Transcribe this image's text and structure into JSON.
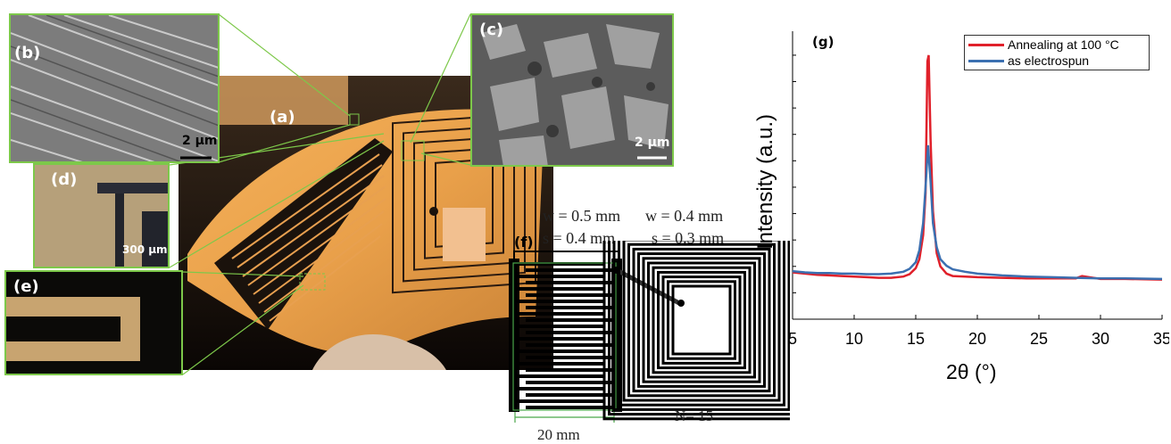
{
  "figure": {
    "photo": {
      "label": "(a)"
    },
    "insets": [
      {
        "id": "b",
        "label": "(b)",
        "scale_text": "2 μm"
      },
      {
        "id": "c",
        "label": "(c)",
        "scale_text": "2 μm"
      },
      {
        "id": "d",
        "label": "(d)",
        "scale_text": "300 μm"
      },
      {
        "id": "e",
        "label": "(e)"
      }
    ],
    "schematic": {
      "label": "(f)",
      "left_w": "w = 0.5 mm",
      "left_s": "s = 0.4 mm",
      "right_w": "w = 0.4 mm",
      "right_s": "s = 0.3 mm",
      "width_label": "20 mm",
      "turns_label": "N= 15"
    }
  },
  "chart_data": {
    "type": "line",
    "panel_label": "(g)",
    "xlabel": "2θ (°)",
    "ylabel": "Intensity (a.u.)",
    "xlim": [
      5,
      35
    ],
    "xticks": [
      "5",
      "10",
      "15",
      "20",
      "25",
      "30",
      "35"
    ],
    "y_ticklabels_shown": false,
    "legend_position": "top-right",
    "series": [
      {
        "name": "Annealing at 100 °C",
        "color": "#e0202a",
        "x": [
          5,
          6,
          7,
          8,
          9,
          10,
          11,
          12,
          13,
          14,
          14.5,
          15,
          15.3,
          15.6,
          15.8,
          15.95,
          16.05,
          16.2,
          16.4,
          16.7,
          17,
          17.5,
          18,
          19,
          20,
          22,
          24,
          26,
          28,
          28.5,
          30,
          32,
          35
        ],
        "y": [
          7.8,
          7.6,
          7.4,
          7.3,
          7.2,
          7.1,
          7.0,
          6.9,
          6.9,
          7.1,
          7.5,
          8.5,
          10,
          14,
          21,
          43,
          44,
          30,
          18,
          11,
          8.8,
          7.6,
          7.2,
          7.1,
          7.0,
          6.9,
          6.8,
          6.8,
          6.8,
          7.2,
          6.7,
          6.7,
          6.6
        ]
      },
      {
        "name": "as electrospun",
        "color": "#3b6fb0",
        "x": [
          5,
          6,
          7,
          8,
          9,
          10,
          11,
          12,
          13,
          14,
          14.5,
          15,
          15.3,
          15.6,
          15.8,
          16.0,
          16.2,
          16.4,
          16.7,
          17,
          17.5,
          18,
          19,
          20,
          22,
          24,
          26,
          28,
          30,
          32,
          35
        ],
        "y": [
          8.0,
          7.8,
          7.7,
          7.7,
          7.6,
          7.6,
          7.5,
          7.5,
          7.6,
          7.9,
          8.4,
          9.5,
          11.5,
          16,
          22,
          29,
          23,
          16,
          12,
          10,
          8.9,
          8.3,
          7.9,
          7.6,
          7.3,
          7.1,
          7.0,
          6.9,
          6.8,
          6.8,
          6.7
        ]
      }
    ],
    "ylim": [
      0,
      48
    ]
  }
}
